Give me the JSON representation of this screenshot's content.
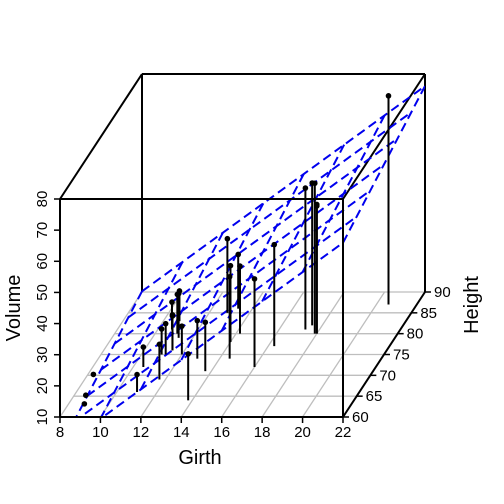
{
  "chart_data": {
    "type": "scatter3d",
    "title": "",
    "xlabel": "Girth",
    "ylabel": "Height",
    "zlabel": "Volume",
    "x_ticks": [
      "8",
      "10",
      "12",
      "14",
      "16",
      "18",
      "20",
      "22"
    ],
    "y_ticks": [
      "60",
      "65",
      "70",
      "75",
      "80",
      "85",
      "90"
    ],
    "z_ticks": [
      "10",
      "20",
      "30",
      "40",
      "50",
      "60",
      "70",
      "80"
    ],
    "xlim": [
      8,
      22
    ],
    "ylim": [
      60,
      90
    ],
    "zlim": [
      10,
      80
    ],
    "grid": true,
    "colors": {
      "points": "#000000",
      "plane": "#0000ee",
      "grid": "#bebebe",
      "box": "#000000"
    },
    "regression_plane": {
      "intercept": -57.99,
      "girth_coef": 4.708,
      "height_coef": 0.3393,
      "style": "dashed"
    },
    "points": [
      {
        "x": 8.3,
        "y": 70,
        "z": 10.3
      },
      {
        "x": 8.6,
        "y": 65,
        "z": 10.3
      },
      {
        "x": 8.8,
        "y": 63,
        "z": 10.2
      },
      {
        "x": 10.5,
        "y": 72,
        "z": 16.4
      },
      {
        "x": 10.7,
        "y": 81,
        "z": 18.8
      },
      {
        "x": 10.8,
        "y": 83,
        "z": 19.7
      },
      {
        "x": 11.0,
        "y": 66,
        "z": 15.6
      },
      {
        "x": 11.0,
        "y": 75,
        "z": 18.2
      },
      {
        "x": 11.1,
        "y": 80,
        "z": 22.6
      },
      {
        "x": 11.2,
        "y": 75,
        "z": 19.9
      },
      {
        "x": 11.3,
        "y": 79,
        "z": 24.2
      },
      {
        "x": 11.4,
        "y": 76,
        "z": 21.0
      },
      {
        "x": 11.4,
        "y": 76,
        "z": 21.4
      },
      {
        "x": 11.7,
        "y": 69,
        "z": 21.3
      },
      {
        "x": 12.0,
        "y": 75,
        "z": 19.1
      },
      {
        "x": 12.9,
        "y": 74,
        "z": 22.2
      },
      {
        "x": 12.9,
        "y": 85,
        "z": 33.8
      },
      {
        "x": 13.3,
        "y": 86,
        "z": 27.4
      },
      {
        "x": 13.7,
        "y": 71,
        "z": 25.7
      },
      {
        "x": 13.8,
        "y": 64,
        "z": 24.9
      },
      {
        "x": 14.0,
        "y": 78,
        "z": 34.5
      },
      {
        "x": 14.2,
        "y": 80,
        "z": 31.7
      },
      {
        "x": 14.5,
        "y": 74,
        "z": 36.3
      },
      {
        "x": 16.0,
        "y": 72,
        "z": 38.3
      },
      {
        "x": 16.3,
        "y": 77,
        "z": 42.6
      },
      {
        "x": 17.3,
        "y": 81,
        "z": 55.4
      },
      {
        "x": 17.5,
        "y": 82,
        "z": 55.7
      },
      {
        "x": 17.9,
        "y": 80,
        "z": 58.3
      },
      {
        "x": 18.0,
        "y": 80,
        "z": 51.5
      },
      {
        "x": 18.0,
        "y": 80,
        "z": 51.0
      },
      {
        "x": 20.6,
        "y": 87,
        "z": 77.0
      }
    ]
  }
}
